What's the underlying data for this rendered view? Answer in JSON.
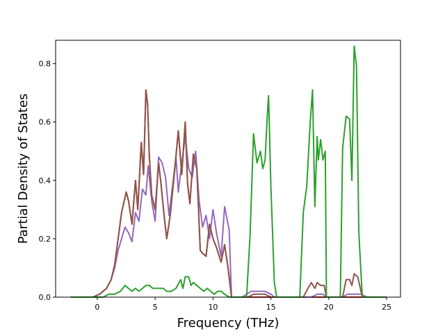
{
  "chart_data": {
    "type": "line",
    "title": "",
    "xlabel": "Frequency (THz)",
    "ylabel": "Partial Density of States",
    "xlim": [
      -3.6,
      26.2
    ],
    "ylim": [
      0,
      0.88
    ],
    "xticks": [
      0,
      5,
      10,
      15,
      20,
      25
    ],
    "xtick_labels": [
      "0",
      "5",
      "10",
      "15",
      "20",
      "25"
    ],
    "yticks": [
      0.0,
      0.2,
      0.4,
      0.6,
      0.8
    ],
    "ytick_labels": [
      "0.0",
      "0.2",
      "0.4",
      "0.6",
      "0.8"
    ],
    "grid": false,
    "legend": "none",
    "series": [
      {
        "color": "#d62728",
        "x": [
          -2.3,
          -0.4,
          0.2,
          0.8,
          1.2,
          1.5,
          1.8,
          2.1,
          2.5,
          2.7,
          3.0,
          3.3,
          3.5,
          3.8,
          4.0,
          4.2,
          4.35,
          4.5,
          4.7,
          5.0,
          5.3,
          5.5,
          5.8,
          6.0,
          6.3,
          6.7,
          7.0,
          7.3,
          7.6,
          7.8,
          8.0,
          8.3,
          8.6,
          8.9,
          9.1,
          9.4,
          9.7,
          10.0,
          10.3,
          10.7,
          11.0,
          11.3,
          11.6,
          12.5,
          25.0
        ],
        "y": [
          0,
          0.0,
          0.01,
          0.03,
          0.06,
          0.11,
          0.2,
          0.29,
          0.36,
          0.33,
          0.25,
          0.4,
          0.3,
          0.53,
          0.42,
          0.71,
          0.66,
          0.48,
          0.35,
          0.3,
          0.46,
          0.39,
          0.27,
          0.2,
          0.28,
          0.44,
          0.57,
          0.42,
          0.6,
          0.39,
          0.32,
          0.49,
          0.44,
          0.16,
          0.15,
          0.14,
          0.25,
          0.2,
          0.17,
          0.12,
          0.18,
          0.1,
          0.0,
          0,
          0
        ]
      },
      {
        "color": "#9467bd",
        "x": [
          -2.3,
          -0.4,
          0.2,
          0.8,
          1.2,
          1.5,
          1.8,
          2.1,
          2.4,
          2.7,
          3.0,
          3.3,
          3.6,
          3.9,
          4.2,
          4.4,
          4.7,
          5.0,
          5.3,
          5.6,
          5.9,
          6.2,
          6.5,
          6.8,
          7.0,
          7.3,
          7.6,
          7.9,
          8.2,
          8.5,
          8.8,
          9.1,
          9.4,
          9.7,
          10.0,
          10.3,
          10.7,
          11.0,
          11.4,
          11.6,
          12.5,
          12.9,
          13.3,
          13.6,
          14.0,
          14.5,
          15.0,
          15.3,
          15.5,
          17.5,
          17.9,
          18.5,
          19.0,
          19.5,
          19.8,
          20.8,
          21.2,
          21.6,
          22.0,
          22.4,
          22.8,
          23.3,
          25.0
        ],
        "y": [
          0,
          0.0,
          0.01,
          0.03,
          0.06,
          0.1,
          0.16,
          0.2,
          0.24,
          0.22,
          0.19,
          0.29,
          0.26,
          0.37,
          0.35,
          0.45,
          0.33,
          0.26,
          0.48,
          0.46,
          0.41,
          0.28,
          0.38,
          0.48,
          0.36,
          0.46,
          0.55,
          0.44,
          0.41,
          0.5,
          0.33,
          0.24,
          0.28,
          0.2,
          0.3,
          0.22,
          0.14,
          0.31,
          0.23,
          0.0,
          0,
          0.01,
          0.02,
          0.02,
          0.02,
          0.02,
          0.01,
          0.0,
          0,
          0,
          0.0,
          0.0,
          0.01,
          0.01,
          0.0,
          0,
          0.0,
          0.01,
          0.01,
          0.01,
          0.01,
          0.0,
          0
        ]
      },
      {
        "color": "#8c564b",
        "x": [
          -2.3,
          -0.4,
          0.2,
          0.8,
          1.2,
          1.5,
          1.8,
          2.1,
          2.5,
          2.7,
          3.0,
          3.3,
          3.5,
          3.8,
          4.0,
          4.2,
          4.35,
          4.5,
          4.7,
          5.0,
          5.3,
          5.5,
          5.8,
          6.0,
          6.3,
          6.7,
          7.0,
          7.3,
          7.6,
          7.8,
          8.0,
          8.3,
          8.6,
          8.9,
          9.1,
          9.4,
          9.7,
          10.0,
          10.3,
          10.7,
          11.0,
          11.3,
          11.6,
          12.5,
          13.0,
          13.5,
          14.0,
          14.5,
          15.0,
          15.3,
          15.5,
          17.5,
          17.8,
          18.2,
          18.5,
          18.8,
          19.0,
          19.3,
          19.6,
          19.8,
          20.8,
          21.2,
          21.5,
          21.8,
          22.0,
          22.2,
          22.5,
          22.9,
          23.3,
          25.0
        ],
        "y": [
          0,
          0.0,
          0.01,
          0.03,
          0.06,
          0.11,
          0.2,
          0.29,
          0.36,
          0.33,
          0.25,
          0.4,
          0.3,
          0.53,
          0.42,
          0.71,
          0.66,
          0.48,
          0.35,
          0.3,
          0.46,
          0.39,
          0.27,
          0.2,
          0.28,
          0.44,
          0.57,
          0.42,
          0.6,
          0.39,
          0.32,
          0.49,
          0.44,
          0.16,
          0.15,
          0.14,
          0.25,
          0.2,
          0.17,
          0.12,
          0.18,
          0.1,
          0.0,
          0,
          0.0,
          0.01,
          0.01,
          0.01,
          0.0,
          0.0,
          0,
          0,
          0.0,
          0.03,
          0.05,
          0.03,
          0.05,
          0.04,
          0.04,
          0.0,
          0,
          0.0,
          0.06,
          0.06,
          0.04,
          0.08,
          0.07,
          0.0,
          0.0,
          0
        ]
      },
      {
        "color": "#2ca02c",
        "x": [
          -2.3,
          -0.4,
          0.5,
          1.0,
          1.5,
          2.0,
          2.4,
          2.7,
          3.0,
          3.3,
          3.6,
          3.9,
          4.2,
          4.5,
          4.8,
          5.1,
          5.4,
          5.7,
          6.0,
          6.4,
          6.8,
          7.2,
          7.4,
          7.6,
          7.9,
          8.1,
          8.3,
          8.6,
          8.9,
          9.2,
          9.5,
          9.8,
          10.1,
          10.4,
          10.7,
          11.0,
          11.4,
          11.6,
          12.9,
          13.2,
          13.5,
          13.8,
          14.1,
          14.3,
          14.5,
          14.7,
          14.8,
          15.0,
          15.3,
          15.5,
          17.5,
          17.8,
          18.1,
          18.4,
          18.6,
          18.8,
          19.0,
          19.1,
          19.3,
          19.5,
          19.7,
          19.8,
          21.0,
          21.2,
          21.5,
          21.8,
          22.0,
          22.2,
          22.4,
          22.6,
          22.9,
          25.0
        ],
        "y": [
          0,
          0.0,
          0.0,
          0.01,
          0.01,
          0.02,
          0.04,
          0.03,
          0.02,
          0.03,
          0.02,
          0.03,
          0.04,
          0.04,
          0.03,
          0.03,
          0.03,
          0.03,
          0.02,
          0.02,
          0.03,
          0.06,
          0.03,
          0.07,
          0.07,
          0.04,
          0.05,
          0.04,
          0.03,
          0.02,
          0.03,
          0.02,
          0.01,
          0.02,
          0.02,
          0.01,
          0.0,
          0,
          0.0,
          0.21,
          0.56,
          0.46,
          0.5,
          0.44,
          0.47,
          0.63,
          0.69,
          0.38,
          0.05,
          0,
          0,
          0.29,
          0.38,
          0.6,
          0.71,
          0.31,
          0.55,
          0.47,
          0.54,
          0.47,
          0.5,
          0,
          0,
          0.51,
          0.62,
          0.61,
          0.4,
          0.86,
          0.79,
          0.22,
          0.0,
          0
        ]
      }
    ]
  }
}
